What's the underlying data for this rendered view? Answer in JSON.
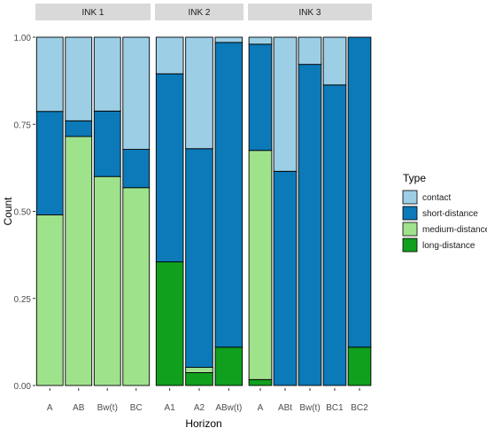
{
  "chart_data": {
    "type": "bar",
    "stacked": true,
    "normalized": true,
    "xlabel": "Horizon",
    "ylabel": "Count",
    "ylim": [
      0,
      1
    ],
    "yticks": [
      "0.00",
      "0.25",
      "0.50",
      "0.75",
      "1.00"
    ],
    "legend": {
      "title": "Type",
      "position": "right",
      "items": [
        {
          "name": "contact",
          "color": "#9ccfe6"
        },
        {
          "name": "short-distance",
          "color": "#0c79b8"
        },
        {
          "name": "medium-distance",
          "color": "#9fe28c"
        },
        {
          "name": "long-distance",
          "color": "#10a01e"
        }
      ]
    },
    "panels": [
      {
        "title": "INK 1",
        "categories": [
          "A",
          "AB",
          "Bw(t)",
          "BC"
        ],
        "values": {
          "long-distance": [
            0,
            0,
            0,
            0
          ],
          "medium-distance": [
            0.49,
            0.715,
            0.6,
            0.568
          ],
          "short-distance": [
            0.297,
            0.045,
            0.188,
            0.11
          ],
          "contact": [
            0.213,
            0.24,
            0.212,
            0.322
          ]
        }
      },
      {
        "title": "INK 2",
        "categories": [
          "A1",
          "A2",
          "ABw(t)"
        ],
        "values": {
          "long-distance": [
            0.355,
            0.037,
            0.11
          ],
          "medium-distance": [
            0,
            0.015,
            0
          ],
          "short-distance": [
            0.54,
            0.628,
            0.875
          ],
          "contact": [
            0.105,
            0.32,
            0.015
          ]
        }
      },
      {
        "title": "INK 3",
        "categories": [
          "A",
          "ABt",
          "Bw(t)",
          "BC1",
          "BC2"
        ],
        "values": {
          "long-distance": [
            0.017,
            0,
            0,
            0,
            0.11
          ],
          "medium-distance": [
            0.658,
            0,
            0,
            0,
            0
          ],
          "short-distance": [
            0.305,
            0.615,
            0.922,
            0.863,
            0.89
          ],
          "contact": [
            0.02,
            0.385,
            0.078,
            0.137,
            0
          ]
        }
      }
    ]
  }
}
